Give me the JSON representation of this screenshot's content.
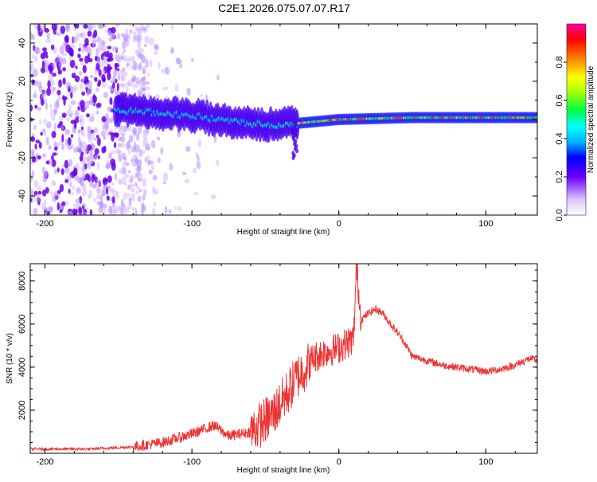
{
  "title": "C2E1.2026.075.07.07.R17",
  "chart_data": [
    {
      "type": "heatmap",
      "name": "spectrogram",
      "xlabel": "Height of straight line (km)",
      "ylabel": "Frequency (Hz)",
      "xlim": [
        -210,
        135
      ],
      "ylim": [
        -50,
        50
      ],
      "x_ticks": [
        -200,
        -100,
        0,
        100
      ],
      "x_tick_labels": [
        "-200",
        "-100",
        "0",
        "100"
      ],
      "y_ticks": [
        -40,
        -20,
        0,
        20,
        40
      ],
      "y_tick_labels": [
        "-40",
        "-20",
        "0",
        "20",
        "40"
      ],
      "colorbar": {
        "label": "Normalized spectral amplitude",
        "ticks": [
          0.0,
          0.2,
          0.4,
          0.6,
          0.8
        ],
        "tick_labels": [
          "0.0",
          "0.2",
          "0.4",
          "0.6",
          "0.8"
        ],
        "range": [
          0,
          1
        ]
      },
      "ridge_frequency_hz": [
        {
          "x": -150,
          "f": 5
        },
        {
          "x": -100,
          "f": 2
        },
        {
          "x": -60,
          "f": -2
        },
        {
          "x": -40,
          "f": -3
        },
        {
          "x": -28,
          "f": -2
        },
        {
          "x": 0,
          "f": 0
        },
        {
          "x": 50,
          "f": 1
        },
        {
          "x": 100,
          "f": 1
        },
        {
          "x": 135,
          "f": 1
        }
      ]
    },
    {
      "type": "line",
      "name": "snr",
      "xlabel": "Height of straight line (km)",
      "ylabel": "SNR (10 * v/v)",
      "xlim": [
        -210,
        135
      ],
      "ylim": [
        0,
        8800
      ],
      "x_ticks": [
        -200,
        -100,
        0,
        100
      ],
      "x_tick_labels": [
        "-200",
        "-100",
        "0",
        "100"
      ],
      "y_ticks": [
        2000,
        4000,
        6000,
        8000
      ],
      "y_tick_labels": [
        "2000",
        "4000",
        "6000",
        "8000"
      ],
      "color": "#ee3333",
      "series": [
        {
          "name": "SNR",
          "x": [
            -210,
            -170,
            -140,
            -120,
            -100,
            -85,
            -75,
            -60,
            -45,
            -35,
            -28,
            -22,
            -18,
            -10,
            0,
            10,
            12,
            15,
            20,
            25,
            30,
            35,
            40,
            45,
            50,
            60,
            70,
            80,
            90,
            100,
            110,
            120,
            130,
            135
          ],
          "values": [
            200,
            200,
            300,
            500,
            900,
            1300,
            800,
            1000,
            1800,
            2800,
            3600,
            4000,
            4400,
            4700,
            4900,
            5300,
            8700,
            6200,
            6500,
            6700,
            6500,
            6000,
            5600,
            5100,
            4500,
            4300,
            4100,
            4000,
            3900,
            3800,
            3900,
            4100,
            4400,
            4300
          ]
        }
      ]
    }
  ]
}
